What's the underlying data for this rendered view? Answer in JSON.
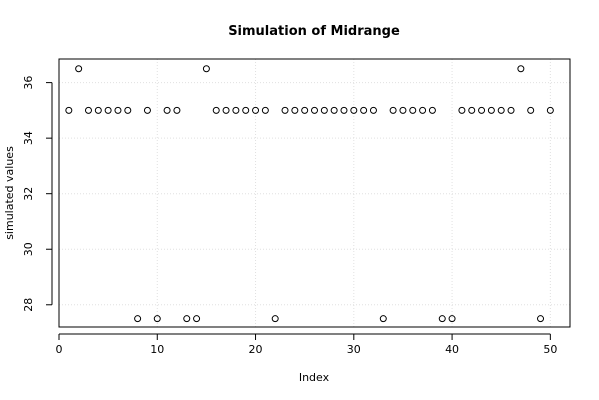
{
  "chart_data": {
    "type": "scatter",
    "title": "Simulation of Midrange",
    "xlabel": "Index",
    "ylabel": "simulated values",
    "xlim": [
      0,
      52
    ],
    "ylim": [
      27.2,
      36.85
    ],
    "xticks": [
      0,
      10,
      20,
      30,
      40,
      50
    ],
    "yticks": [
      28,
      30,
      32,
      34,
      36
    ],
    "grid": true,
    "marker": "open-circle",
    "x": [
      1,
      2,
      3,
      4,
      5,
      6,
      7,
      8,
      9,
      10,
      11,
      12,
      13,
      14,
      15,
      16,
      17,
      18,
      19,
      20,
      21,
      22,
      23,
      24,
      25,
      26,
      27,
      28,
      29,
      30,
      31,
      32,
      33,
      34,
      35,
      36,
      37,
      38,
      39,
      40,
      41,
      42,
      43,
      44,
      45,
      46,
      47,
      48,
      49,
      50
    ],
    "y": [
      35,
      36.5,
      35,
      35,
      35,
      35,
      35,
      27.5,
      35,
      27.5,
      35,
      35,
      27.5,
      27.5,
      36.5,
      35,
      35,
      35,
      35,
      35,
      35,
      27.5,
      35,
      35,
      35,
      35,
      35,
      35,
      35,
      35,
      35,
      35,
      27.5,
      35,
      35,
      35,
      35,
      35,
      27.5,
      27.5,
      35,
      35,
      35,
      35,
      35,
      35,
      36.5,
      35,
      27.5,
      35
    ]
  }
}
